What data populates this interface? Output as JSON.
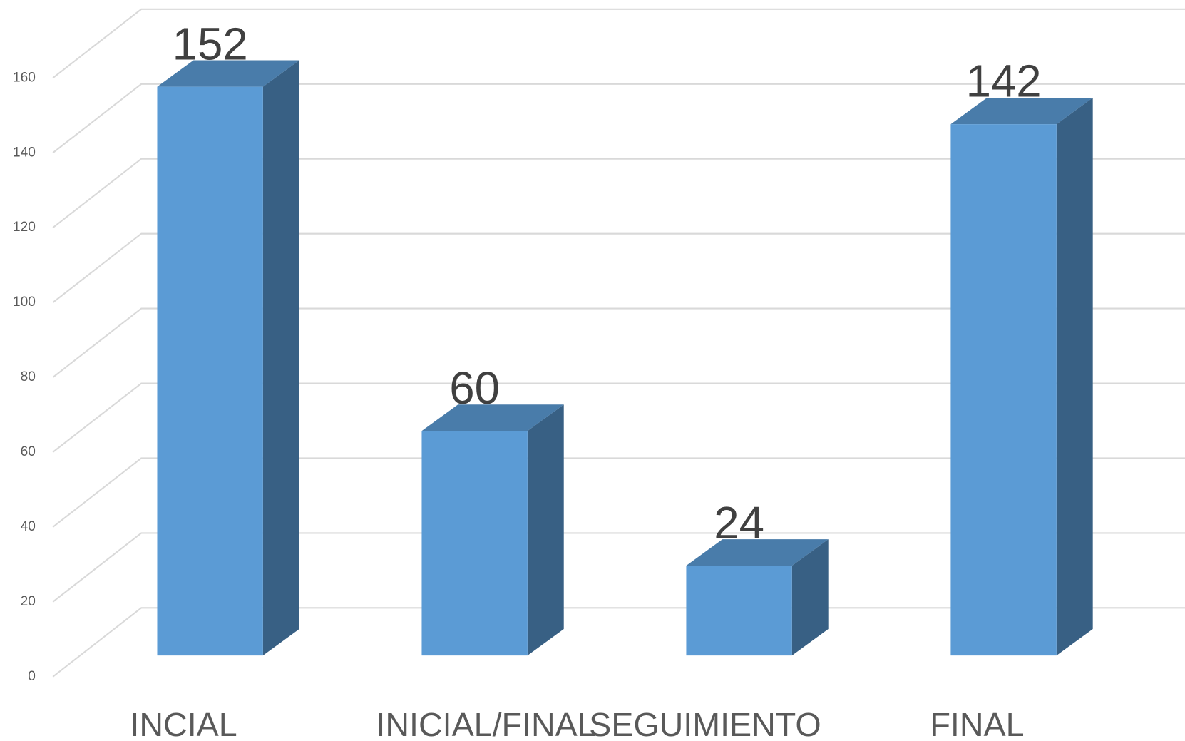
{
  "chart_data": {
    "type": "bar3d",
    "categories": [
      "INCIAL",
      "INICIAL/FINAL",
      "SEGUIMIENTO",
      "FINAL"
    ],
    "values": [
      152,
      60,
      24,
      142
    ],
    "color": "#5b9bd5",
    "ylim": [
      0,
      160
    ],
    "yticks": [
      0,
      20,
      40,
      60,
      80,
      100,
      120,
      140,
      160
    ],
    "grid": true
  }
}
